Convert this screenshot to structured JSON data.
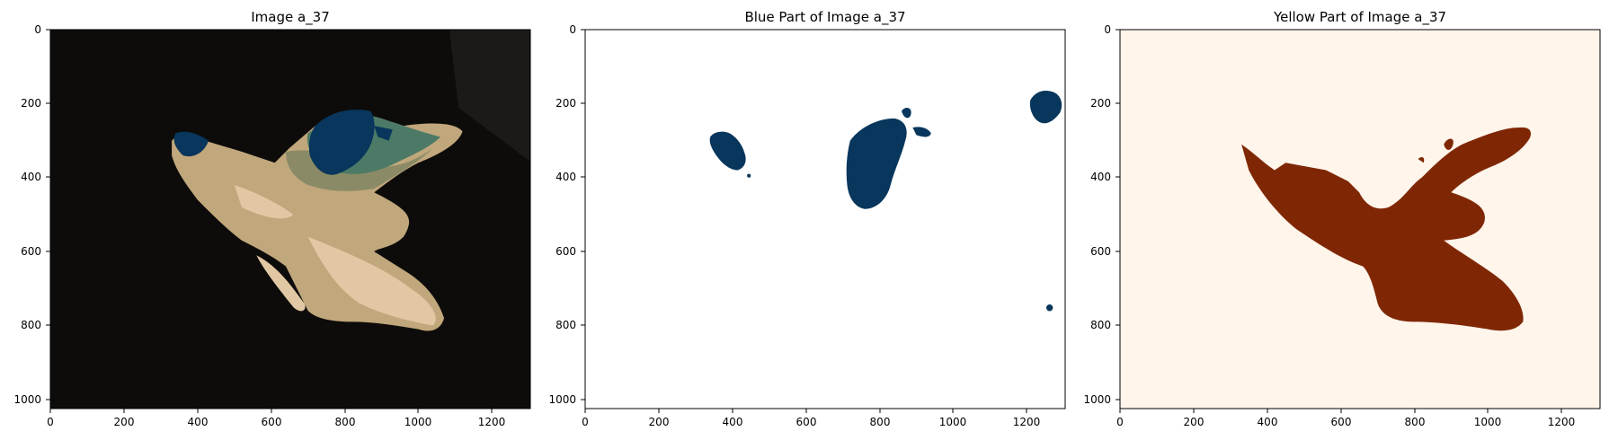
{
  "figure": {
    "panels": [
      {
        "title": "Image a_37",
        "background_color": "#0d0c0a",
        "x_ticks": [
          "0",
          "200",
          "400",
          "600",
          "800",
          "1000",
          "1200"
        ],
        "y_ticks": [
          "0",
          "200",
          "400",
          "600",
          "800",
          "1000"
        ]
      },
      {
        "title": "Blue Part of Image a_37",
        "background_color": "#ffffff",
        "mask_color": "#08365c",
        "x_ticks": [
          "0",
          "200",
          "400",
          "600",
          "800",
          "1000",
          "1200"
        ],
        "y_ticks": [
          "0",
          "200",
          "400",
          "600",
          "800",
          "1000"
        ]
      },
      {
        "title": "Yellow Part of Image a_37",
        "background_color": "#fff5eb",
        "mask_color": "#7f2704",
        "x_ticks": [
          "0",
          "200",
          "400",
          "600",
          "800",
          "1000",
          "1200"
        ],
        "y_ticks": [
          "0",
          "200",
          "400",
          "600",
          "800",
          "1000"
        ]
      }
    ],
    "colors": {
      "sand_light": "#e1c7a3",
      "sand_mid": "#c1a77c",
      "olive": "#8a8b66",
      "green": "#4d7a66",
      "blue": "#08365c"
    }
  }
}
